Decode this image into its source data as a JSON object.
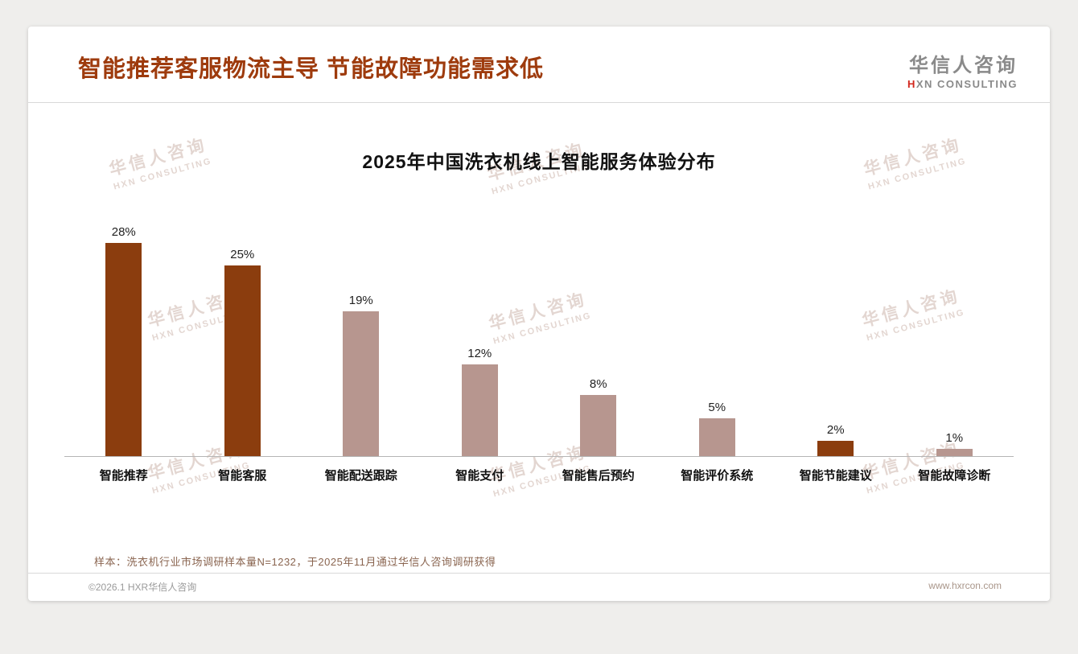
{
  "header": {
    "title": "智能推荐客服物流主导 节能故障功能需求低",
    "logo_cn": "华信人咨询",
    "logo_en_first": "H",
    "logo_en_rest": "XN CONSULTING"
  },
  "chart_data": {
    "type": "bar",
    "title": "2025年中国洗衣机线上智能服务体验分布",
    "categories": [
      "智能推荐",
      "智能客服",
      "智能配送跟踪",
      "智能支付",
      "智能售后预约",
      "智能评价系统",
      "智能节能建议",
      "智能故障诊断"
    ],
    "values": [
      28,
      25,
      19,
      12,
      8,
      5,
      2,
      1
    ],
    "value_labels": [
      "28%",
      "25%",
      "19%",
      "12%",
      "8%",
      "5%",
      "2%",
      "1%"
    ],
    "bar_colors": [
      "#8b3d0e",
      "#8b3d0e",
      "#b7968f",
      "#b7968f",
      "#b7968f",
      "#b7968f",
      "#8b3d0e",
      "#b7968f"
    ],
    "ylim": [
      0,
      30
    ],
    "xlabel": "",
    "ylabel": "",
    "grid": false,
    "legend": "none",
    "colors": {
      "dark_bar": "#8b3d0e",
      "light_bar": "#b7968f",
      "title_accent": "#9e3b0d"
    }
  },
  "watermark": {
    "line1": "华信人咨询",
    "line2": "HXN CONSULTING"
  },
  "footer": {
    "note": "样本：洗衣机行业市场调研样本量N=1232，于2025年11月通过华信人咨询调研获得",
    "copyright": "©2026.1 HXR华信人咨询",
    "website": "www.hxrcon.com"
  }
}
